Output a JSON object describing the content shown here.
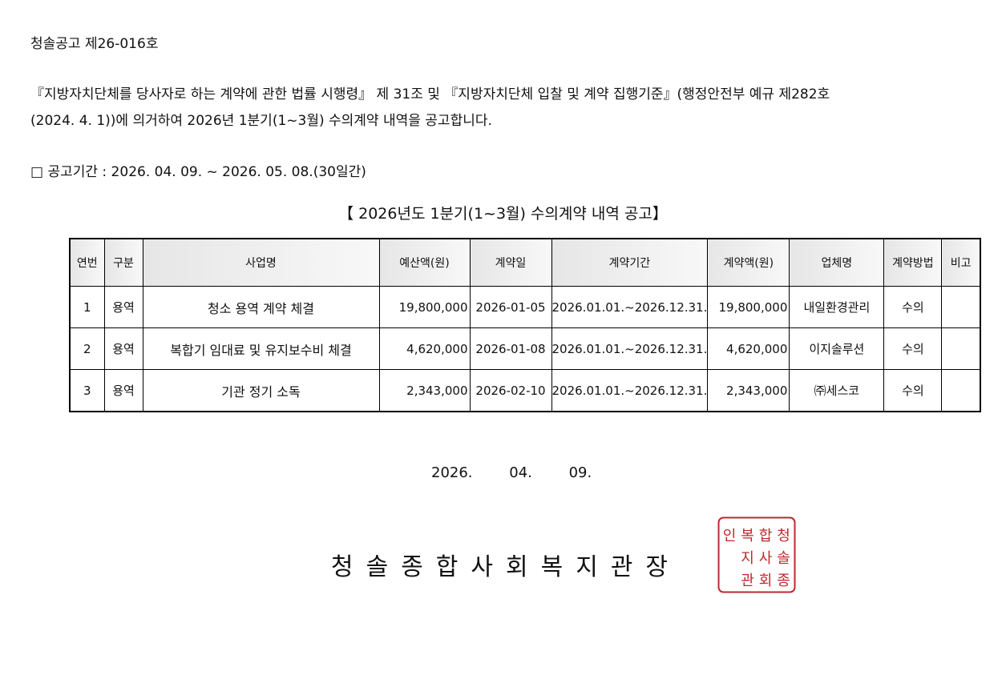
{
  "notice_no": "청솔공고 제26-016호",
  "intro_line1": "『지방자치단체를 당사자로 하는 계약에 관한 법률 시행령』 제 31조 및 『지방자치단체 입찰 및 계약 집행기준』(행정안전부 예규 제282호",
  "intro_line2": "(2024. 4. 1))에 의거하여 2026년 1분기(1~3월) 수의계약 내역을 공고합니다.",
  "period": "□ 공고기간 : 2026. 04. 09. ~ 2026. 05. 08.(30일간)",
  "table_title": "【 2026년도 1분기(1~3월) 수의계약 내역 공고】",
  "headers": [
    "연번",
    "구분",
    "사업명",
    "예산액(원)",
    "계약일",
    "계약기간",
    "계약액(원)",
    "업체명",
    "계약방법",
    "비고"
  ],
  "rows": [
    [
      "1",
      "용역",
      "청소 용역 계약 체결",
      "19,800,000",
      "2026-01-05",
      "2026.01.01.~2026.12.31.",
      "19,800,000",
      "내일환경관리",
      "수의",
      ""
    ],
    [
      "2",
      "용역",
      "복합기 임대료 및 유지보수비 체결",
      "4,620,000",
      "2026-01-08",
      "2026.01.01.~2026.12.31.",
      "4,620,000",
      "이지솔루션",
      "수의",
      ""
    ],
    [
      "3",
      "용역",
      "기관 정기 소독",
      "2,343,000",
      "2026-02-10",
      "2026.01.01.~2026.12.31.",
      "2,343,000",
      "㈜세스코",
      "수의",
      ""
    ]
  ],
  "date": "2026. 04. 09.",
  "org": "청솔종합사회복지관장",
  "seal_text": "청솔종합사회복지관인",
  "seal_color": "#c0272d"
}
